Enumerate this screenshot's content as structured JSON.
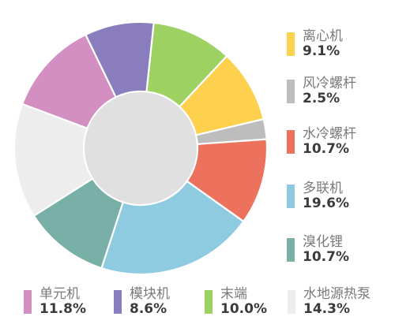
{
  "chart_data": {
    "type": "pie",
    "title": "",
    "slices": [
      {
        "label": "离心机",
        "value": 9.1,
        "display": "9.1%",
        "color": "#FDD14E"
      },
      {
        "label": "风冷螺杆",
        "value": 2.5,
        "display": "2.5%",
        "color": "#BDBDBD"
      },
      {
        "label": "水冷螺杆",
        "value": 10.7,
        "display": "10.7%",
        "color": "#EC725E"
      },
      {
        "label": "多联机",
        "value": 19.6,
        "display": "19.6%",
        "color": "#8ECAE0"
      },
      {
        "label": "溴化锂",
        "value": 10.7,
        "display": "10.7%",
        "color": "#78AFA6"
      },
      {
        "label": "水地源热泵",
        "value": 14.3,
        "display": "14.3%",
        "color": "#EDEDED"
      },
      {
        "label": "单元机",
        "value": 11.8,
        "display": "11.8%",
        "color": "#D38FC1"
      },
      {
        "label": "模块机",
        "value": 8.6,
        "display": "8.6%",
        "color": "#8A7DBD"
      },
      {
        "label": "末端",
        "value": 10.0,
        "display": "10.0%",
        "color": "#9DD161"
      }
    ],
    "center_color": "#E0E0E0",
    "legend": "right-and-bottom"
  }
}
